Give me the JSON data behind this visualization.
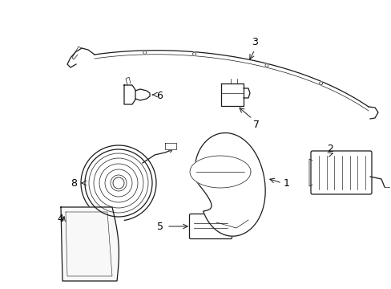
{
  "bg_color": "#ffffff",
  "line_color": "#1a1a1a",
  "lw": 0.9,
  "lw_thin": 0.5,
  "label_fontsize": 9,
  "figsize": [
    4.89,
    3.6
  ],
  "dpi": 100
}
